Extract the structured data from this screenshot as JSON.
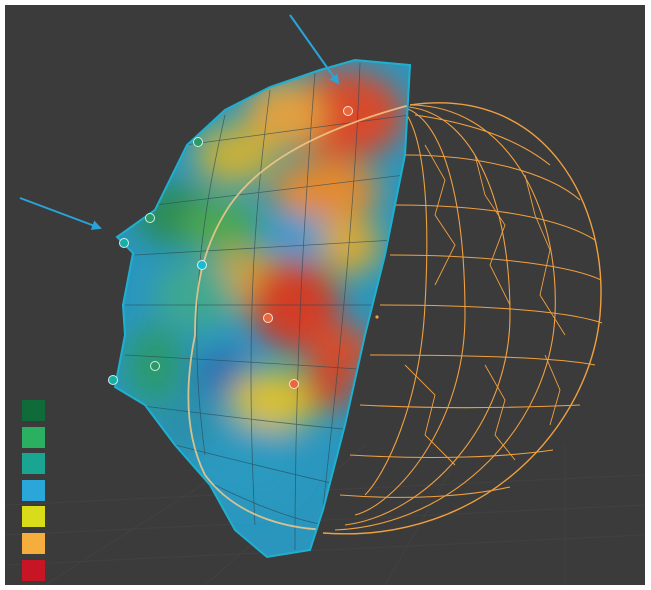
{
  "viewport": {
    "background": "#3b3b3b",
    "grid_color": "#474747",
    "wireframe_color": "#f0a040",
    "mesh_edge_color": "#1fb0d0"
  },
  "arrows": {
    "color": "#2aa3d8",
    "icon": "arrow-down-right"
  },
  "landmarks": {
    "colors": {
      "orange": "#e8683e",
      "teal": "#16b0a6",
      "green": "#2a9a68",
      "cyan": "#18bcd0"
    }
  },
  "legend": {
    "swatches": [
      "#0f6b3a",
      "#2bb061",
      "#19a592",
      "#2aa7d8",
      "#d9dd19",
      "#f5ad3e",
      "#c81525"
    ]
  }
}
